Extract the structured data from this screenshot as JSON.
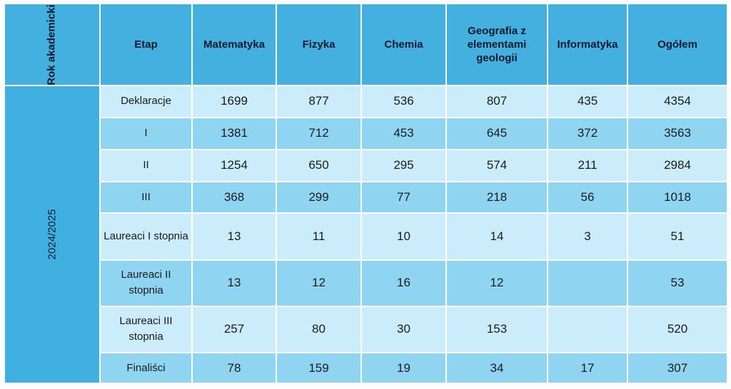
{
  "header": {
    "year_col": "Rok akademicki",
    "etap": "Etap",
    "subjects": [
      "Matematyka",
      "Fizyka",
      "Chemia",
      "Geografia z elementami geologii",
      "Informatyka",
      "Ogółem"
    ]
  },
  "academic_year": "2024/2025",
  "rows": [
    {
      "etap": "Deklaracje",
      "values": [
        "1699",
        "877",
        "536",
        "807",
        "435",
        "4354"
      ]
    },
    {
      "etap": "I",
      "values": [
        "1381",
        "712",
        "453",
        "645",
        "372",
        "3563"
      ]
    },
    {
      "etap": "II",
      "values": [
        "1254",
        "650",
        "295",
        "574",
        "211",
        "2984"
      ]
    },
    {
      "etap": "III",
      "values": [
        "368",
        "299",
        "77",
        "218",
        "56",
        "1018"
      ]
    },
    {
      "etap": "Laureaci I stopnia",
      "values": [
        "13",
        "11",
        "10",
        "14",
        "3",
        "51"
      ]
    },
    {
      "etap": "Laureaci II stopnia",
      "values": [
        "13",
        "12",
        "16",
        "12",
        "",
        "53"
      ]
    },
    {
      "etap": "Laureaci III stopnia",
      "values": [
        "257",
        "80",
        "30",
        "153",
        "",
        "520"
      ]
    },
    {
      "etap": "Finaliści",
      "values": [
        "78",
        "159",
        "19",
        "34",
        "17",
        "307"
      ]
    }
  ],
  "colors": {
    "header_bg": "#44b0df",
    "year_bg": "#3fb0e0",
    "row_light": "#cbecfa",
    "row_mid": "#8fd4f1"
  }
}
